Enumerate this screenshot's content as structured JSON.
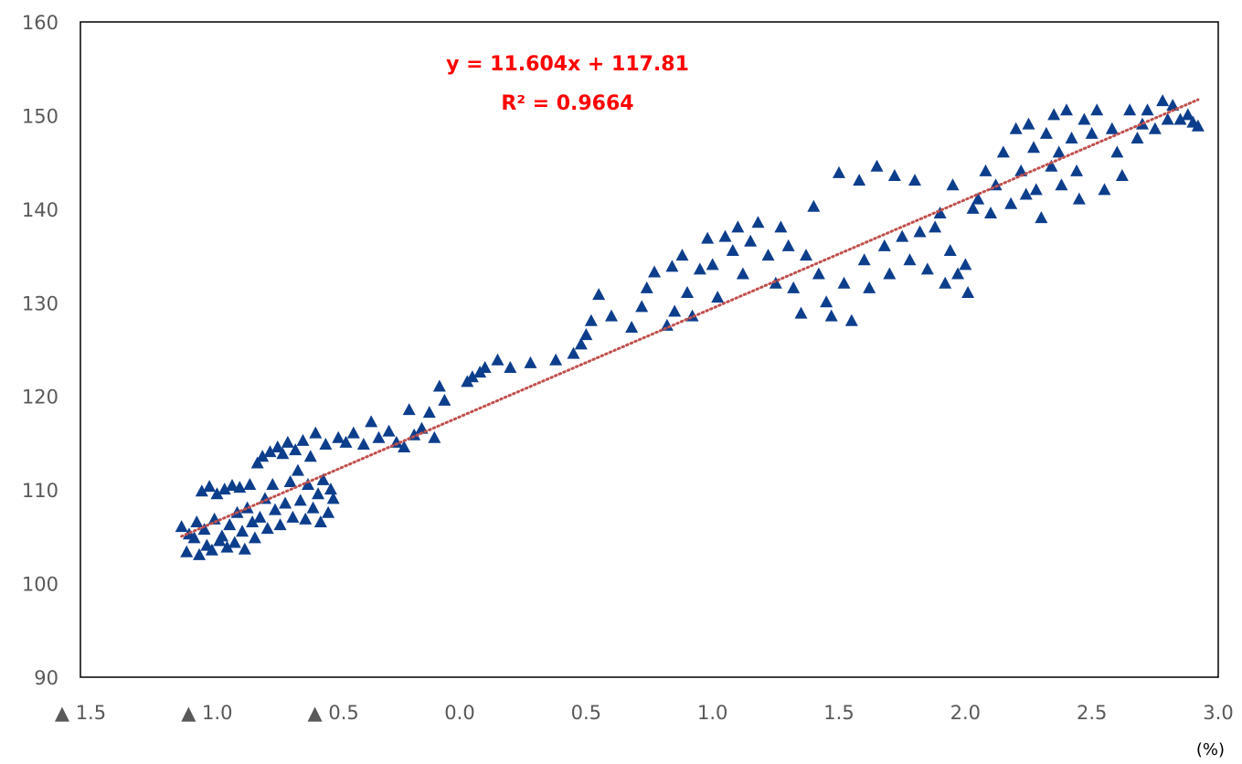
{
  "chart_data": {
    "type": "scatter",
    "xlim": [
      -1.5,
      3.0
    ],
    "ylim": [
      90,
      160
    ],
    "x_ticks": [
      -1.5,
      -1.0,
      -0.5,
      0.0,
      0.5,
      1.0,
      1.5,
      2.0,
      2.5,
      3.0
    ],
    "x_tick_labels": [
      "▲ 1.5",
      "▲ 1.0",
      "▲ 0.5",
      "0.0",
      "0.5",
      "1.0",
      "1.5",
      "2.0",
      "2.5",
      "3.0"
    ],
    "y_ticks": [
      90,
      100,
      110,
      120,
      130,
      140,
      150,
      160
    ],
    "y_tick_labels": [
      "90",
      "100",
      "110",
      "120",
      "130",
      "140",
      "150",
      "160"
    ],
    "x_unit": "(%)",
    "grid": false,
    "marker": "triangle",
    "marker_color": "#0d3e8c",
    "trendline": {
      "slope": 11.604,
      "intercept": 117.81,
      "x_range": [
        -1.1,
        2.92
      ],
      "color": "#c0504d",
      "style": "dotted",
      "equation_label": "y = 11.604x + 117.81",
      "r2_label": "R² = 0.9664",
      "label_color": "#ff0000"
    },
    "series": [
      {
        "points": [
          [
            -1.1,
            106.0
          ],
          [
            -1.08,
            103.3
          ],
          [
            -1.07,
            105.2
          ],
          [
            -1.05,
            104.8
          ],
          [
            -1.04,
            106.5
          ],
          [
            -1.03,
            103.0
          ],
          [
            -1.02,
            109.8
          ],
          [
            -1.01,
            105.7
          ],
          [
            -1.0,
            104.0
          ],
          [
            -0.99,
            110.3
          ],
          [
            -0.98,
            103.5
          ],
          [
            -0.97,
            106.8
          ],
          [
            -0.96,
            109.5
          ],
          [
            -0.95,
            104.5
          ],
          [
            -0.94,
            105.0
          ],
          [
            -0.93,
            110.0
          ],
          [
            -0.92,
            103.8
          ],
          [
            -0.91,
            106.2
          ],
          [
            -0.9,
            110.4
          ],
          [
            -0.89,
            104.3
          ],
          [
            -0.88,
            107.5
          ],
          [
            -0.87,
            110.2
          ],
          [
            -0.86,
            105.5
          ],
          [
            -0.85,
            103.6
          ],
          [
            -0.84,
            108.0
          ],
          [
            -0.83,
            110.5
          ],
          [
            -0.82,
            106.5
          ],
          [
            -0.81,
            104.8
          ],
          [
            -0.8,
            112.8
          ],
          [
            -0.79,
            107.0
          ],
          [
            -0.78,
            113.5
          ],
          [
            -0.77,
            109.0
          ],
          [
            -0.76,
            105.8
          ],
          [
            -0.75,
            114.0
          ],
          [
            -0.74,
            110.5
          ],
          [
            -0.73,
            107.8
          ],
          [
            -0.72,
            114.5
          ],
          [
            -0.71,
            106.2
          ],
          [
            -0.7,
            113.8
          ],
          [
            -0.69,
            108.5
          ],
          [
            -0.68,
            115.0
          ],
          [
            -0.67,
            110.8
          ],
          [
            -0.66,
            107.0
          ],
          [
            -0.65,
            114.2
          ],
          [
            -0.64,
            112.0
          ],
          [
            -0.63,
            108.8
          ],
          [
            -0.62,
            115.2
          ],
          [
            -0.61,
            106.8
          ],
          [
            -0.6,
            110.5
          ],
          [
            -0.59,
            113.5
          ],
          [
            -0.58,
            108.0
          ],
          [
            -0.57,
            116.0
          ],
          [
            -0.56,
            109.5
          ],
          [
            -0.55,
            106.5
          ],
          [
            -0.54,
            111.0
          ],
          [
            -0.53,
            114.8
          ],
          [
            -0.52,
            107.5
          ],
          [
            -0.51,
            110.0
          ],
          [
            -0.5,
            109.0
          ],
          [
            -0.48,
            115.5
          ],
          [
            -0.45,
            115.0
          ],
          [
            -0.42,
            116.0
          ],
          [
            -0.38,
            114.8
          ],
          [
            -0.35,
            117.2
          ],
          [
            -0.32,
            115.5
          ],
          [
            -0.28,
            116.2
          ],
          [
            -0.25,
            115.0
          ],
          [
            -0.22,
            114.5
          ],
          [
            -0.2,
            118.5
          ],
          [
            -0.18,
            115.8
          ],
          [
            -0.15,
            116.5
          ],
          [
            -0.12,
            118.2
          ],
          [
            -0.1,
            115.5
          ],
          [
            -0.08,
            121.0
          ],
          [
            -0.06,
            119.5
          ],
          [
            0.03,
            121.5
          ],
          [
            0.05,
            122.0
          ],
          [
            0.08,
            122.5
          ],
          [
            0.1,
            123.0
          ],
          [
            0.15,
            123.8
          ],
          [
            0.2,
            123.0
          ],
          [
            0.28,
            123.5
          ],
          [
            0.38,
            123.8
          ],
          [
            0.45,
            124.5
          ],
          [
            0.48,
            125.5
          ],
          [
            0.5,
            126.5
          ],
          [
            0.52,
            128.0
          ],
          [
            0.55,
            130.8
          ],
          [
            0.6,
            128.5
          ],
          [
            0.68,
            127.3
          ],
          [
            0.72,
            129.5
          ],
          [
            0.74,
            131.5
          ],
          [
            0.77,
            133.2
          ],
          [
            0.82,
            127.5
          ],
          [
            0.85,
            129.0
          ],
          [
            0.84,
            133.8
          ],
          [
            0.88,
            135.0
          ],
          [
            0.9,
            131.0
          ],
          [
            0.92,
            128.5
          ],
          [
            0.95,
            133.5
          ],
          [
            0.98,
            136.8
          ],
          [
            1.0,
            134.0
          ],
          [
            1.02,
            130.5
          ],
          [
            1.05,
            137.0
          ],
          [
            1.08,
            135.5
          ],
          [
            1.1,
            138.0
          ],
          [
            1.12,
            133.0
          ],
          [
            1.15,
            136.5
          ],
          [
            1.18,
            138.5
          ],
          [
            1.22,
            135.0
          ],
          [
            1.25,
            132.0
          ],
          [
            1.27,
            138.0
          ],
          [
            1.3,
            136.0
          ],
          [
            1.32,
            131.5
          ],
          [
            1.35,
            128.8
          ],
          [
            1.37,
            135.0
          ],
          [
            1.4,
            140.2
          ],
          [
            1.42,
            133.0
          ],
          [
            1.45,
            130.0
          ],
          [
            1.47,
            128.5
          ],
          [
            1.5,
            143.8
          ],
          [
            1.52,
            132.0
          ],
          [
            1.55,
            128.0
          ],
          [
            1.58,
            143.0
          ],
          [
            1.6,
            134.5
          ],
          [
            1.62,
            131.5
          ],
          [
            1.65,
            144.5
          ],
          [
            1.68,
            136.0
          ],
          [
            1.7,
            133.0
          ],
          [
            1.72,
            143.5
          ],
          [
            1.75,
            137.0
          ],
          [
            1.78,
            134.5
          ],
          [
            1.8,
            143.0
          ],
          [
            1.82,
            137.5
          ],
          [
            1.85,
            133.5
          ],
          [
            1.88,
            138.0
          ],
          [
            1.9,
            139.5
          ],
          [
            1.92,
            132.0
          ],
          [
            1.94,
            135.5
          ],
          [
            1.95,
            142.5
          ],
          [
            1.97,
            133.0
          ],
          [
            2.0,
            134.0
          ],
          [
            2.01,
            131.0
          ],
          [
            2.03,
            140.0
          ],
          [
            2.05,
            141.0
          ],
          [
            2.08,
            144.0
          ],
          [
            2.1,
            139.5
          ],
          [
            2.12,
            142.5
          ],
          [
            2.15,
            146.0
          ],
          [
            2.18,
            140.5
          ],
          [
            2.2,
            148.5
          ],
          [
            2.22,
            144.0
          ],
          [
            2.24,
            141.5
          ],
          [
            2.25,
            149.0
          ],
          [
            2.27,
            146.5
          ],
          [
            2.28,
            142.0
          ],
          [
            2.3,
            139.0
          ],
          [
            2.32,
            148.0
          ],
          [
            2.34,
            144.5
          ],
          [
            2.35,
            150.0
          ],
          [
            2.37,
            146.0
          ],
          [
            2.38,
            142.5
          ],
          [
            2.4,
            150.5
          ],
          [
            2.42,
            147.5
          ],
          [
            2.44,
            144.0
          ],
          [
            2.45,
            141.0
          ],
          [
            2.47,
            149.5
          ],
          [
            2.5,
            148.0
          ],
          [
            2.52,
            150.5
          ],
          [
            2.55,
            142.0
          ],
          [
            2.58,
            148.5
          ],
          [
            2.6,
            146.0
          ],
          [
            2.62,
            143.5
          ],
          [
            2.65,
            150.5
          ],
          [
            2.68,
            147.5
          ],
          [
            2.7,
            149.0
          ],
          [
            2.72,
            150.5
          ],
          [
            2.75,
            148.5
          ],
          [
            2.78,
            151.5
          ],
          [
            2.8,
            149.5
          ],
          [
            2.82,
            151.0
          ],
          [
            2.85,
            149.5
          ],
          [
            2.88,
            150.0
          ],
          [
            2.9,
            149.2
          ],
          [
            2.92,
            148.8
          ]
        ]
      }
    ]
  }
}
